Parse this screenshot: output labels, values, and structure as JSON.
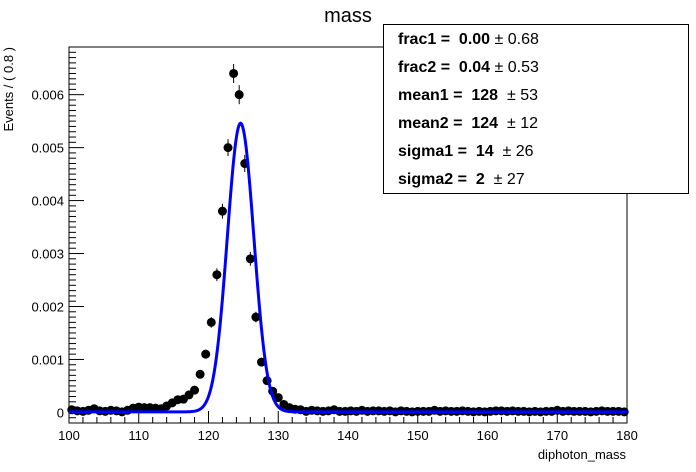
{
  "chart_data": {
    "type": "scatter",
    "title": "mass",
    "xlabel": "diphoton_mass",
    "ylabel": "Events / ( 0.8 )",
    "xlim": [
      100,
      180
    ],
    "ylim": [
      -0.0002,
      0.0069
    ],
    "xticks": [
      "100",
      "110",
      "120",
      "130",
      "140",
      "150",
      "160",
      "170",
      "180"
    ],
    "yticks": [
      "0",
      "0.001",
      "0.002",
      "0.003",
      "0.004",
      "0.005",
      "0.006"
    ],
    "bin_width": 0.8,
    "series": [
      {
        "kind": "data-points",
        "color": "#000000",
        "x": [
          100.4,
          101.2,
          102.0,
          102.8,
          103.6,
          104.4,
          105.2,
          106.0,
          106.8,
          107.6,
          108.4,
          109.2,
          110.0,
          110.8,
          111.6,
          112.4,
          113.2,
          114.0,
          114.8,
          115.6,
          116.4,
          117.2,
          118.0,
          118.8,
          119.6,
          120.4,
          121.2,
          122.0,
          122.8,
          123.6,
          124.4,
          125.2,
          126.0,
          126.8,
          127.6,
          128.4,
          129.2,
          130.0,
          130.8,
          131.6,
          132.4,
          133.2,
          134.0,
          134.8,
          135.6,
          136.4,
          137.2,
          138.0,
          138.8,
          139.6,
          140.4,
          141.2,
          142.0,
          142.8,
          143.6,
          144.4,
          145.2,
          146.0,
          146.8,
          147.6,
          148.4,
          149.2,
          150.0,
          150.8,
          151.6,
          152.4,
          153.2,
          154.0,
          154.8,
          155.6,
          156.4,
          157.2,
          158.0,
          158.8,
          159.6,
          160.4,
          161.2,
          162.0,
          162.8,
          163.6,
          164.4,
          165.2,
          166.0,
          166.8,
          167.6,
          168.4,
          169.2,
          170.0,
          170.8,
          171.6,
          172.4,
          173.2,
          174.0,
          174.8,
          175.6,
          176.4,
          177.2,
          178.0,
          178.8,
          179.6
        ],
        "y": [
          5e-05,
          3e-05,
          2e-05,
          4e-05,
          7e-05,
          3e-05,
          2e-05,
          4e-05,
          3e-05,
          1e-05,
          4e-05,
          8e-05,
          0.0001,
          9e-05,
          9e-05,
          8e-05,
          7e-05,
          0.00012,
          0.00018,
          0.00024,
          0.00025,
          0.00033,
          0.00042,
          0.00072,
          0.0011,
          0.0017,
          0.0026,
          0.0038,
          0.005,
          0.0064,
          0.006,
          0.0047,
          0.0029,
          0.0018,
          0.00095,
          0.0006,
          0.0004,
          0.00028,
          0.00015,
          9e-05,
          6e-05,
          5e-05,
          2e-05,
          4e-05,
          3e-05,
          2e-05,
          3e-05,
          5e-05,
          2e-05,
          2e-05,
          3e-05,
          2e-05,
          4e-05,
          2e-05,
          3e-05,
          3e-05,
          2e-05,
          3e-05,
          1e-05,
          3e-05,
          2e-05,
          1e-05,
          2e-05,
          2e-05,
          2e-05,
          4e-05,
          2e-05,
          3e-05,
          2e-05,
          2e-05,
          3e-05,
          2e-05,
          1e-05,
          2e-05,
          1e-05,
          2e-05,
          3e-05,
          3e-05,
          2e-05,
          3e-05,
          2e-05,
          2e-05,
          1e-05,
          2e-05,
          1e-05,
          2e-05,
          2e-05,
          4e-05,
          2e-05,
          3e-05,
          2e-05,
          2e-05,
          2e-05,
          1e-05,
          2e-05,
          3e-05,
          2e-05,
          2e-05,
          2e-05,
          1e-05
        ],
        "err": [
          3e-05,
          3e-05,
          3e-05,
          3e-05,
          3e-05,
          3e-05,
          3e-05,
          3e-05,
          3e-05,
          3e-05,
          3e-05,
          3e-05,
          3e-05,
          3e-05,
          3e-05,
          3e-05,
          3e-05,
          4e-05,
          4e-05,
          5e-05,
          5e-05,
          5e-05,
          6e-05,
          7e-05,
          8e-05,
          0.0001,
          0.00012,
          0.00014,
          0.00016,
          0.00018,
          0.00018,
          0.00016,
          0.00013,
          0.0001,
          8e-05,
          6e-05,
          5e-05,
          5e-05,
          4e-05,
          3e-05,
          3e-05,
          3e-05,
          3e-05,
          3e-05,
          3e-05,
          3e-05,
          3e-05,
          3e-05,
          3e-05,
          3e-05,
          3e-05,
          3e-05,
          3e-05,
          3e-05,
          3e-05,
          3e-05,
          3e-05,
          3e-05,
          3e-05,
          3e-05,
          3e-05,
          3e-05,
          3e-05,
          3e-05,
          3e-05,
          3e-05,
          3e-05,
          3e-05,
          3e-05,
          3e-05,
          3e-05,
          3e-05,
          3e-05,
          3e-05,
          3e-05,
          3e-05,
          3e-05,
          3e-05,
          3e-05,
          3e-05,
          3e-05,
          3e-05,
          3e-05,
          3e-05,
          3e-05,
          3e-05,
          3e-05,
          3e-05,
          3e-05,
          3e-05,
          3e-05,
          3e-05,
          3e-05,
          3e-05,
          3e-05,
          3e-05,
          3e-05,
          3e-05,
          3e-05,
          3e-05
        ]
      },
      {
        "kind": "fit-curve",
        "color": "#0000ff",
        "model": "double-gaussian",
        "peak": 0.00545,
        "mean": 124.6,
        "sigma": 1.9,
        "baseline": 1e-05
      }
    ],
    "legend_placement": "top-right",
    "legend": [
      {
        "label": "frac1 =  0.00",
        "pm": " ± 0.68"
      },
      {
        "label": "frac2 =  0.04",
        "pm": " ± 0.53"
      },
      {
        "label": "mean1 =  128",
        "pm": "  ± 53"
      },
      {
        "label": "mean2 =  124",
        "pm": "  ± 12"
      },
      {
        "label": "sigma1 =  14",
        "pm": "  ± 26"
      },
      {
        "label": "sigma2 =  2",
        "pm": "  ± 27"
      }
    ]
  }
}
